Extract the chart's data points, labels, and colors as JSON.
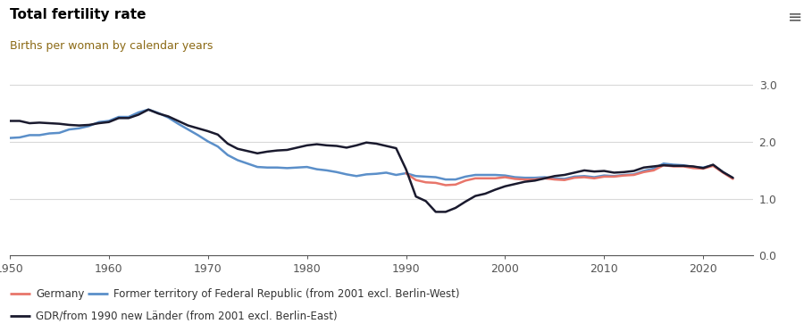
{
  "title": "Total fertility rate",
  "subtitle": "Births per woman by calendar years",
  "title_fontsize": 11,
  "subtitle_fontsize": 9,
  "background_color": "#ffffff",
  "ylim": [
    0.0,
    3.3
  ],
  "yticks": [
    0.0,
    1.0,
    2.0,
    3.0
  ],
  "xlim": [
    1950,
    2025
  ],
  "xticks": [
    1950,
    1960,
    1970,
    1980,
    1990,
    2000,
    2010,
    2020
  ],
  "legend": [
    {
      "label": "Germany",
      "color": "#e8756a",
      "lw": 1.8
    },
    {
      "label": "Former territory of Federal Republic (from 2001 excl. Berlin-West)",
      "color": "#5b8fc9",
      "lw": 1.8
    },
    {
      "label": "GDR/from 1990 new Länder (from 2001 excl. Berlin-East)",
      "color": "#1a1a2e",
      "lw": 1.8
    }
  ],
  "germany": {
    "color": "#e8756a",
    "lw": 1.8,
    "years": [
      1990,
      1991,
      1992,
      1993,
      1994,
      1995,
      1996,
      1997,
      1998,
      1999,
      2000,
      2001,
      2002,
      2003,
      2004,
      2005,
      2006,
      2007,
      2008,
      2009,
      2010,
      2011,
      2012,
      2013,
      2014,
      2015,
      2016,
      2017,
      2018,
      2019,
      2020,
      2021,
      2022,
      2023
    ],
    "values": [
      1.45,
      1.33,
      1.29,
      1.28,
      1.24,
      1.25,
      1.32,
      1.36,
      1.36,
      1.36,
      1.38,
      1.35,
      1.34,
      1.34,
      1.36,
      1.34,
      1.33,
      1.37,
      1.38,
      1.36,
      1.39,
      1.39,
      1.41,
      1.42,
      1.47,
      1.5,
      1.59,
      1.57,
      1.57,
      1.54,
      1.53,
      1.58,
      1.46,
      1.35
    ]
  },
  "west": {
    "color": "#5b8fc9",
    "lw": 1.8,
    "years": [
      1950,
      1951,
      1952,
      1953,
      1954,
      1955,
      1956,
      1957,
      1958,
      1959,
      1960,
      1961,
      1962,
      1963,
      1964,
      1965,
      1966,
      1967,
      1968,
      1969,
      1970,
      1971,
      1972,
      1973,
      1974,
      1975,
      1976,
      1977,
      1978,
      1979,
      1980,
      1981,
      1982,
      1983,
      1984,
      1985,
      1986,
      1987,
      1988,
      1989,
      1990,
      1991,
      1992,
      1993,
      1994,
      1995,
      1996,
      1997,
      1998,
      1999,
      2000,
      2001,
      2002,
      2003,
      2004,
      2005,
      2006,
      2007,
      2008,
      2009,
      2010,
      2011,
      2012,
      2013,
      2014,
      2015,
      2016,
      2017,
      2018,
      2019,
      2020,
      2021,
      2022,
      2023
    ],
    "values": [
      2.07,
      2.08,
      2.12,
      2.12,
      2.15,
      2.16,
      2.22,
      2.24,
      2.28,
      2.35,
      2.37,
      2.44,
      2.44,
      2.52,
      2.57,
      2.51,
      2.43,
      2.32,
      2.22,
      2.12,
      2.01,
      1.92,
      1.77,
      1.68,
      1.62,
      1.56,
      1.55,
      1.55,
      1.54,
      1.55,
      1.56,
      1.52,
      1.5,
      1.47,
      1.43,
      1.4,
      1.43,
      1.44,
      1.46,
      1.42,
      1.45,
      1.4,
      1.39,
      1.38,
      1.34,
      1.34,
      1.39,
      1.42,
      1.42,
      1.42,
      1.41,
      1.38,
      1.37,
      1.37,
      1.38,
      1.36,
      1.35,
      1.39,
      1.4,
      1.38,
      1.41,
      1.4,
      1.42,
      1.43,
      1.49,
      1.53,
      1.62,
      1.6,
      1.59,
      1.56,
      1.55,
      1.59,
      1.47,
      1.36
    ]
  },
  "east": {
    "color": "#1a1a2e",
    "lw": 1.8,
    "years": [
      1950,
      1951,
      1952,
      1953,
      1954,
      1955,
      1956,
      1957,
      1958,
      1959,
      1960,
      1961,
      1962,
      1963,
      1964,
      1965,
      1966,
      1967,
      1968,
      1969,
      1970,
      1971,
      1972,
      1973,
      1974,
      1975,
      1976,
      1977,
      1978,
      1979,
      1980,
      1981,
      1982,
      1983,
      1984,
      1985,
      1986,
      1987,
      1988,
      1989,
      1990,
      1991,
      1992,
      1993,
      1994,
      1995,
      1996,
      1997,
      1998,
      1999,
      2000,
      2001,
      2002,
      2003,
      2004,
      2005,
      2006,
      2007,
      2008,
      2009,
      2010,
      2011,
      2012,
      2013,
      2014,
      2015,
      2016,
      2017,
      2018,
      2019,
      2020,
      2021,
      2022,
      2023
    ],
    "values": [
      2.37,
      2.37,
      2.33,
      2.34,
      2.33,
      2.32,
      2.3,
      2.29,
      2.3,
      2.33,
      2.35,
      2.42,
      2.42,
      2.48,
      2.57,
      2.5,
      2.45,
      2.37,
      2.29,
      2.24,
      2.19,
      2.13,
      1.97,
      1.88,
      1.84,
      1.8,
      1.83,
      1.85,
      1.86,
      1.9,
      1.94,
      1.96,
      1.94,
      1.93,
      1.9,
      1.94,
      1.99,
      1.97,
      1.93,
      1.89,
      1.52,
      1.04,
      0.96,
      0.77,
      0.77,
      0.84,
      0.95,
      1.05,
      1.09,
      1.16,
      1.22,
      1.26,
      1.3,
      1.32,
      1.36,
      1.4,
      1.42,
      1.46,
      1.5,
      1.48,
      1.49,
      1.46,
      1.47,
      1.49,
      1.55,
      1.57,
      1.59,
      1.58,
      1.58,
      1.57,
      1.54,
      1.6,
      1.47,
      1.37
    ]
  },
  "grid_color": "#d9d9d9",
  "tick_color": "#555555",
  "spine_color": "#555555"
}
